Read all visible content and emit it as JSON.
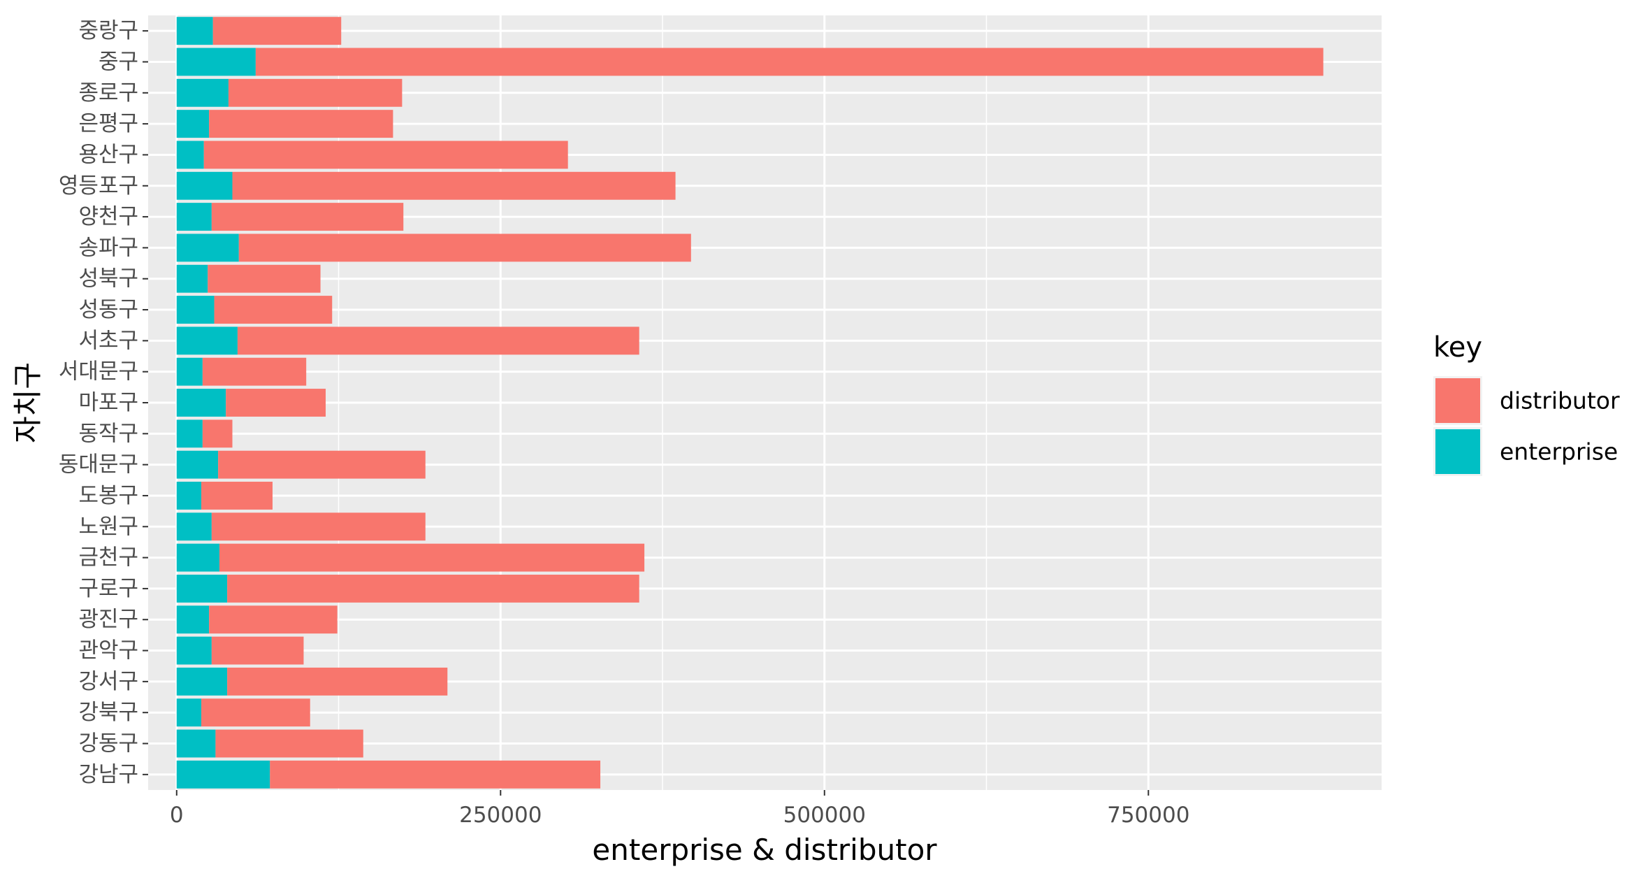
{
  "chart_data": {
    "type": "bar",
    "orientation": "horizontal",
    "stacked": true,
    "xlabel": "enterprise & distributor",
    "ylabel": "자치구",
    "xlim": [
      -22000,
      930000
    ],
    "xticks": [
      0,
      250000,
      500000,
      750000
    ],
    "xtick_labels": [
      "0",
      "250000",
      "500000",
      "750000"
    ],
    "grid": true,
    "legend_position": "right",
    "legend_title": "key",
    "categories": [
      "중랑구",
      "중구",
      "종로구",
      "은평구",
      "용산구",
      "영등포구",
      "양천구",
      "송파구",
      "성북구",
      "성동구",
      "서초구",
      "서대문구",
      "마포구",
      "동작구",
      "동대문구",
      "도봉구",
      "노원구",
      "금천구",
      "구로구",
      "광진구",
      "관악구",
      "강서구",
      "강북구",
      "강동구",
      "강남구"
    ],
    "series": [
      {
        "name": "enterprise",
        "color": "#00BFC4",
        "values": [
          28000,
          61000,
          40000,
          25000,
          21000,
          43000,
          27000,
          48000,
          24000,
          29000,
          47000,
          20000,
          38000,
          20000,
          32000,
          19000,
          27000,
          33000,
          39000,
          25000,
          27000,
          39000,
          19000,
          30000,
          72000
        ]
      },
      {
        "name": "distributor",
        "color": "#F8766D",
        "values": [
          99000,
          824000,
          134000,
          142000,
          281000,
          342000,
          148000,
          349000,
          87000,
          91000,
          310000,
          80000,
          77000,
          23000,
          160000,
          55000,
          165000,
          328000,
          318000,
          99000,
          71000,
          170000,
          84000,
          114000,
          255000
        ]
      }
    ]
  }
}
